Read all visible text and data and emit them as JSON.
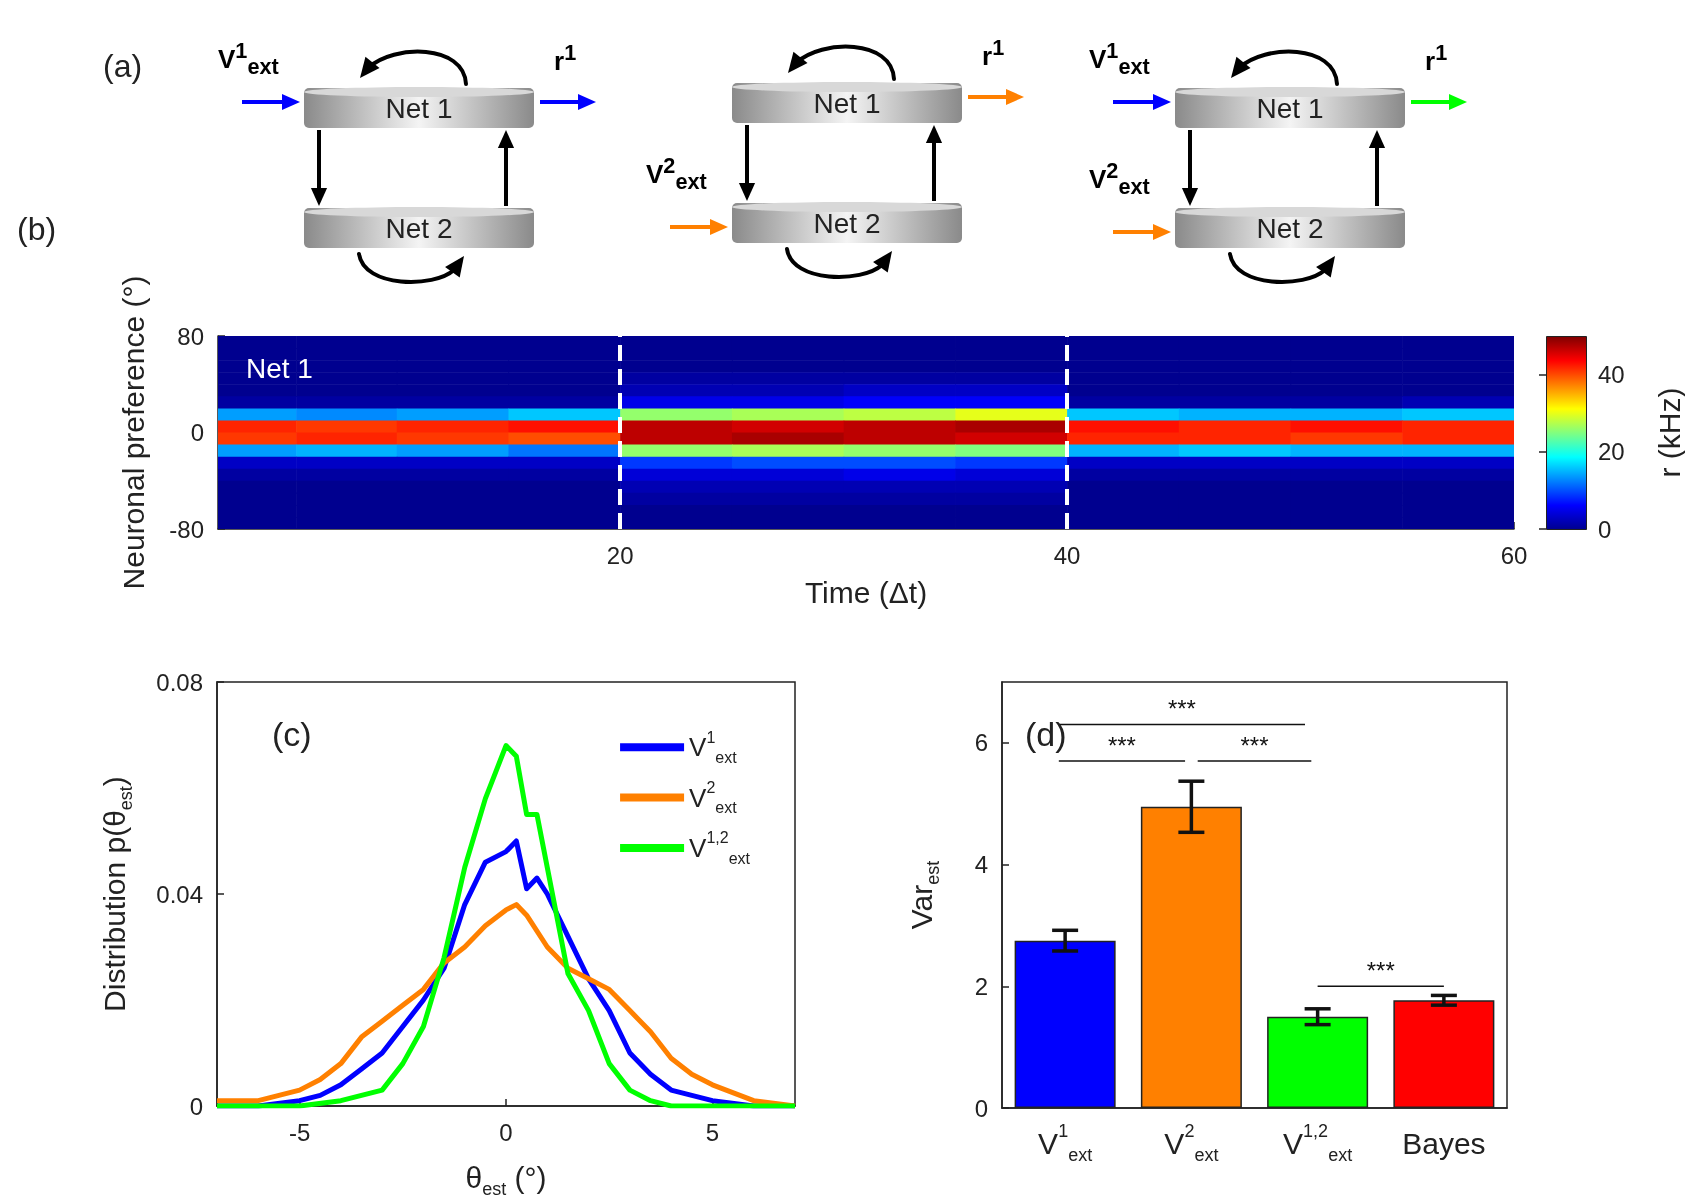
{
  "chart_data": [
    {
      "type": "other",
      "title": "(a)",
      "annotations": [
        "V$^{1}$$_{ext}$",
        "Net 1",
        "Net 2",
        "r$^{1}$",
        "V$^{2}$$_{ext}$",
        "Net 1",
        "Net 2",
        "r$^{1}$",
        "V$^{1}$$_{ext}$",
        "V$^{2}$$_{ext}$",
        "Net 1",
        "Net 2",
        "r$^{1}$"
      ]
    },
    {
      "type": "heatmap",
      "title": "(b)",
      "xlabel": "Time (Δt)",
      "ylabel": "Neuronal preference (°)",
      "clabel": "r (kHz)",
      "annotations": [
        "Net 1"
      ],
      "x": [
        3.5,
        7.5,
        12.5,
        17.5,
        22.5,
        27.5,
        32.5,
        37.5,
        42.5,
        47.5,
        52.5,
        57.5
      ],
      "xlim": [
        2,
        60
      ],
      "xticks": [
        20,
        40,
        60
      ],
      "ylim": [
        -80,
        80
      ],
      "yticks": [
        -80,
        0,
        80
      ],
      "clim": [
        0,
        50
      ],
      "cticks": [
        0,
        20,
        40
      ],
      "ref_lines": [
        {
          "axis": "x",
          "value": 20,
          "color": "#ffffff",
          "line_style": "dashed"
        },
        {
          "axis": "x",
          "value": 40,
          "color": "#ffffff",
          "line_style": "dashed"
        }
      ],
      "cells": [
        [
          0,
          0,
          0,
          0,
          0,
          0,
          0,
          0,
          0,
          0,
          0,
          0
        ],
        [
          0,
          0,
          0,
          0,
          0,
          0,
          0,
          0,
          0,
          0,
          0,
          0
        ],
        [
          0,
          0,
          0,
          0,
          0,
          0,
          0,
          0,
          0,
          0,
          0,
          0
        ],
        [
          0,
          0,
          0,
          0,
          1,
          1,
          1,
          1,
          0,
          0,
          0,
          0
        ],
        [
          0,
          0,
          0,
          0,
          2,
          2,
          3,
          3,
          0,
          0,
          0,
          0
        ],
        [
          1,
          1,
          1,
          1,
          5,
          5,
          6,
          6,
          1,
          1,
          1,
          2
        ],
        [
          14,
          13,
          14,
          16,
          26,
          27,
          28,
          30,
          16,
          15,
          15,
          16
        ],
        [
          42,
          41,
          42,
          43,
          47,
          46,
          47,
          48,
          43,
          42,
          43,
          42
        ],
        [
          41,
          42,
          41,
          40,
          47,
          48,
          47,
          46,
          42,
          42,
          41,
          42
        ],
        [
          14,
          15,
          14,
          12,
          26,
          27,
          26,
          25,
          15,
          16,
          15,
          15
        ],
        [
          3,
          3,
          3,
          3,
          9,
          10,
          10,
          9,
          3,
          3,
          3,
          3
        ],
        [
          1,
          1,
          1,
          1,
          4,
          4,
          5,
          4,
          1,
          1,
          1,
          1
        ],
        [
          0,
          0,
          0,
          0,
          2,
          2,
          2,
          2,
          0,
          0,
          0,
          0
        ],
        [
          0,
          0,
          0,
          0,
          1,
          1,
          1,
          1,
          0,
          0,
          0,
          0
        ],
        [
          0,
          0,
          0,
          0,
          0,
          0,
          0,
          0,
          0,
          0,
          0,
          0
        ],
        [
          0,
          0,
          0,
          0,
          0,
          0,
          0,
          0,
          0,
          0,
          0,
          0
        ]
      ]
    },
    {
      "type": "line",
      "title": "(c)",
      "xlabel": "θ$_{est}$ (°)",
      "ylabel": "Distribution p(θ$_{est}$)",
      "xlim": [
        -7,
        7
      ],
      "xticks": [
        -5,
        0,
        5
      ],
      "ylim": [
        0,
        0.08
      ],
      "yticks": [
        0,
        0.04,
        0.08
      ],
      "legend": "top right",
      "series": [
        {
          "name": "V$^{1}$$_{ext}$",
          "color": "#0000ff",
          "x": [
            -7,
            -6,
            -5,
            -4.5,
            -4,
            -3.5,
            -3,
            -2.5,
            -2,
            -1.5,
            -1,
            -0.5,
            0,
            0.25,
            0.5,
            0.75,
            1,
            1.5,
            2,
            2.5,
            3,
            3.5,
            4,
            4.5,
            5,
            6,
            7
          ],
          "values": [
            0,
            0,
            0.001,
            0.002,
            0.004,
            0.007,
            0.01,
            0.015,
            0.02,
            0.026,
            0.038,
            0.046,
            0.048,
            0.05,
            0.041,
            0.043,
            0.04,
            0.032,
            0.024,
            0.018,
            0.01,
            0.006,
            0.003,
            0.002,
            0.001,
            0,
            0
          ]
        },
        {
          "name": "V$^{2}$$_{ext}$",
          "color": "#ff8000",
          "x": [
            -7,
            -6,
            -5,
            -4.5,
            -4,
            -3.5,
            -3,
            -2.5,
            -2,
            -1.5,
            -1,
            -0.5,
            0,
            0.25,
            0.5,
            1,
            1.5,
            2,
            2.5,
            3,
            3.5,
            4,
            4.5,
            5,
            6,
            7
          ],
          "values": [
            0.001,
            0.001,
            0.003,
            0.005,
            0.008,
            0.013,
            0.016,
            0.019,
            0.022,
            0.027,
            0.03,
            0.034,
            0.037,
            0.038,
            0.036,
            0.03,
            0.026,
            0.024,
            0.022,
            0.018,
            0.014,
            0.009,
            0.006,
            0.004,
            0.001,
            0
          ]
        },
        {
          "name": "V$^{1,2}$$_{ext}$",
          "color": "#00ff00",
          "x": [
            -7,
            -5,
            -4,
            -3,
            -2.5,
            -2,
            -1.5,
            -1,
            -0.5,
            -0.25,
            0,
            0.25,
            0.5,
            0.75,
            1,
            1.5,
            2,
            2.5,
            3,
            3.5,
            4,
            5,
            7
          ],
          "values": [
            0,
            0,
            0.001,
            0.003,
            0.008,
            0.015,
            0.028,
            0.045,
            0.058,
            0.063,
            0.068,
            0.066,
            0.055,
            0.055,
            0.045,
            0.025,
            0.018,
            0.008,
            0.003,
            0.001,
            0,
            0,
            0
          ]
        }
      ]
    },
    {
      "type": "bar",
      "title": "(d)",
      "ylabel": "Var$_{est}$",
      "categories": [
        "V$^{1}$$_{ext}$",
        "V$^{2}$$_{ext}$",
        "V$^{1,2}$$_{ext}$",
        "Bayes"
      ],
      "values": [
        2.75,
        4.95,
        1.5,
        1.77
      ],
      "errors": [
        0.17,
        0.42,
        0.13,
        0.08
      ],
      "colors": [
        "#0000ff",
        "#ff8000",
        "#00ff00",
        "#ff0000"
      ],
      "ylim": [
        0,
        7
      ],
      "yticks": [
        0,
        2,
        4,
        6
      ],
      "annotations": [
        "***",
        "***",
        "***",
        "***"
      ]
    }
  ]
}
